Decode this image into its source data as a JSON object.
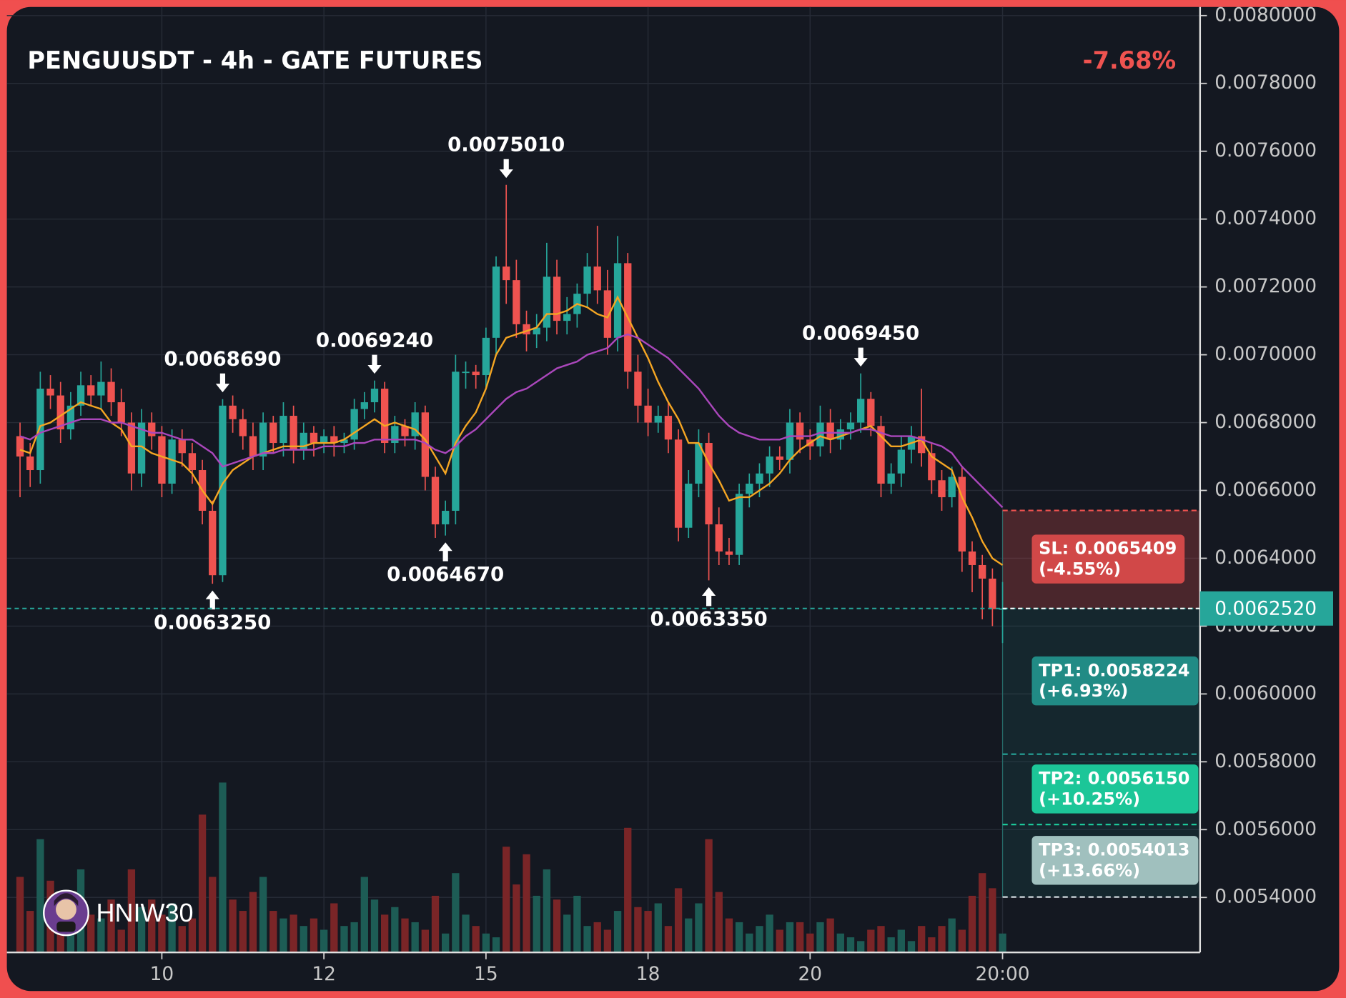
{
  "chart_data": {
    "type": "candlestick",
    "title": "PENGUUSDT - 4h - GATE FUTURES",
    "change": "-7.68%",
    "watermark": "HNIW30",
    "up_color": "#26a69a",
    "down_color": "#ef5350",
    "volume_up_color": "#1d5c55",
    "volume_down_color": "#7a2527",
    "grid": true,
    "xlim": [
      -1.3,
      116.5
    ],
    "xticks": [
      {
        "value": 14,
        "label": "10"
      },
      {
        "value": 30,
        "label": "12"
      },
      {
        "value": 46,
        "label": "15"
      },
      {
        "value": 62,
        "label": "18"
      },
      {
        "value": 78,
        "label": "20"
      },
      {
        "value": 97,
        "label": "20:00"
      }
    ],
    "ylim": [
      0.005238,
      0.008
    ],
    "yticks": [
      {
        "value": 0.0054,
        "label": "0.0054000"
      },
      {
        "value": 0.0056,
        "label": "0.0056000"
      },
      {
        "value": 0.0058,
        "label": "0.0058000"
      },
      {
        "value": 0.006,
        "label": "0.0060000"
      },
      {
        "value": 0.0062,
        "label": "0.0062000"
      },
      {
        "value": 0.0064,
        "label": "0.0064000"
      },
      {
        "value": 0.0066,
        "label": "0.0066000"
      },
      {
        "value": 0.0068,
        "label": "0.0068000"
      },
      {
        "value": 0.007,
        "label": "0.0070000"
      },
      {
        "value": 0.0072,
        "label": "0.0072000"
      },
      {
        "value": 0.0074,
        "label": "0.0074000"
      },
      {
        "value": 0.0076,
        "label": "0.0076000"
      },
      {
        "value": 0.0078,
        "label": "0.0078000"
      },
      {
        "value": 0.008,
        "label": "0.0080000"
      }
    ],
    "open": [
      0.00676,
      0.0067,
      0.00666,
      0.0069,
      0.00688,
      0.00678,
      0.00685,
      0.00691,
      0.00688,
      0.00692,
      0.00686,
      0.0068,
      0.00665,
      0.0068,
      0.00676,
      0.00662,
      0.00675,
      0.00671,
      0.00666,
      0.00654,
      0.00635,
      0.00685,
      0.00681,
      0.00676,
      0.0067,
      0.0068,
      0.00674,
      0.00682,
      0.00672,
      0.00677,
      0.00674,
      0.00676,
      0.00674,
      0.00675,
      0.00684,
      0.00686,
      0.0069,
      0.00674,
      0.00679,
      0.00676,
      0.00683,
      0.00664,
      0.0065,
      0.00654,
      0.00695,
      0.00695,
      0.00694,
      0.00705,
      0.00726,
      0.00722,
      0.00709,
      0.00706,
      0.00708,
      0.00723,
      0.0071,
      0.00712,
      0.00718,
      0.00726,
      0.00719,
      0.00705,
      0.00727,
      0.00695,
      0.00685,
      0.0068,
      0.00682,
      0.00675,
      0.00649,
      0.00662,
      0.00674,
      0.0065,
      0.00642,
      0.00641,
      0.00659,
      0.00662,
      0.00665,
      0.0067,
      0.00669,
      0.0068,
      0.00675,
      0.00673,
      0.0068,
      0.00675,
      0.00678,
      0.0068,
      0.00687,
      0.00679,
      0.00662,
      0.00665,
      0.00672,
      0.00676,
      0.00671,
      0.00663,
      0.00658,
      0.00664,
      0.00642,
      0.00638,
      0.00634,
      0.00625
    ],
    "high": [
      0.0068,
      0.00674,
      0.00695,
      0.00694,
      0.00692,
      0.00689,
      0.00695,
      0.00694,
      0.00698,
      0.00696,
      0.0069,
      0.00683,
      0.00684,
      0.00683,
      0.00679,
      0.00678,
      0.00678,
      0.00674,
      0.00669,
      0.00657,
      0.006869,
      0.00688,
      0.00684,
      0.0068,
      0.00683,
      0.00682,
      0.00686,
      0.00685,
      0.0068,
      0.00679,
      0.00678,
      0.00679,
      0.00677,
      0.00687,
      0.00689,
      0.006924,
      0.00692,
      0.00682,
      0.00681,
      0.00686,
      0.00685,
      0.00667,
      0.00657,
      0.007,
      0.00698,
      0.00697,
      0.00708,
      0.00729,
      0.007501,
      0.00728,
      0.00713,
      0.00712,
      0.00733,
      0.00728,
      0.00717,
      0.00721,
      0.0073,
      0.00738,
      0.00725,
      0.00735,
      0.0073,
      0.007,
      0.0069,
      0.00685,
      0.00686,
      0.00678,
      0.00666,
      0.00678,
      0.00677,
      0.00655,
      0.00646,
      0.00662,
      0.00665,
      0.00668,
      0.00673,
      0.00673,
      0.00684,
      0.00683,
      0.00678,
      0.00685,
      0.00684,
      0.00681,
      0.00683,
      0.006945,
      0.00689,
      0.00682,
      0.00668,
      0.00676,
      0.00679,
      0.0069,
      0.00674,
      0.00666,
      0.00667,
      0.00667,
      0.00645,
      0.00641,
      0.00637,
      0.00633
    ],
    "low": [
      0.00658,
      0.00661,
      0.00662,
      0.00684,
      0.00674,
      0.00675,
      0.00682,
      0.00685,
      0.00684,
      0.00682,
      0.00676,
      0.0066,
      0.00661,
      0.00672,
      0.00658,
      0.00659,
      0.00667,
      0.00662,
      0.0065,
      0.006325,
      0.00633,
      0.00677,
      0.00672,
      0.00666,
      0.00666,
      0.00671,
      0.0067,
      0.00668,
      0.00669,
      0.0067,
      0.00671,
      0.0067,
      0.00671,
      0.00672,
      0.00681,
      0.00683,
      0.00671,
      0.00671,
      0.00673,
      0.00672,
      0.0066,
      0.00646,
      0.006467,
      0.0065,
      0.0069,
      0.0069,
      0.0069,
      0.007,
      0.00715,
      0.00705,
      0.00701,
      0.00702,
      0.00704,
      0.00706,
      0.00706,
      0.00708,
      0.00714,
      0.00715,
      0.007,
      0.00701,
      0.0069,
      0.0068,
      0.00676,
      0.00677,
      0.00671,
      0.00645,
      0.00646,
      0.00658,
      0.006335,
      0.00638,
      0.00638,
      0.00638,
      0.00655,
      0.00658,
      0.00661,
      0.00666,
      0.00665,
      0.00671,
      0.00669,
      0.0067,
      0.00671,
      0.00672,
      0.00675,
      0.00677,
      0.00676,
      0.00658,
      0.00659,
      0.00661,
      0.00668,
      0.00667,
      0.00659,
      0.00654,
      0.00655,
      0.00636,
      0.0063,
      0.00622,
      0.0062,
      0.00615
    ],
    "close": [
      0.0067,
      0.00666,
      0.0069,
      0.00688,
      0.00678,
      0.00685,
      0.00691,
      0.00688,
      0.00692,
      0.00686,
      0.0068,
      0.00665,
      0.0068,
      0.00676,
      0.00662,
      0.00675,
      0.00671,
      0.00666,
      0.00654,
      0.00635,
      0.00685,
      0.00681,
      0.00676,
      0.0067,
      0.0068,
      0.00674,
      0.00682,
      0.00672,
      0.00677,
      0.00674,
      0.00676,
      0.00674,
      0.00675,
      0.00684,
      0.00686,
      0.0069,
      0.00674,
      0.00679,
      0.00676,
      0.00683,
      0.00664,
      0.0065,
      0.00654,
      0.00695,
      0.00695,
      0.00694,
      0.00705,
      0.00726,
      0.00722,
      0.00709,
      0.00706,
      0.00708,
      0.00723,
      0.0071,
      0.00712,
      0.00718,
      0.00726,
      0.00719,
      0.00705,
      0.00727,
      0.00695,
      0.00685,
      0.0068,
      0.00682,
      0.00675,
      0.00649,
      0.00662,
      0.00674,
      0.0065,
      0.00642,
      0.00641,
      0.00659,
      0.00662,
      0.00665,
      0.0067,
      0.00669,
      0.0068,
      0.00675,
      0.00673,
      0.0068,
      0.00675,
      0.00678,
      0.0068,
      0.00687,
      0.00679,
      0.00662,
      0.00665,
      0.00672,
      0.00676,
      0.00671,
      0.00663,
      0.00658,
      0.00664,
      0.00642,
      0.00638,
      0.00634,
      0.00625,
      0.006252
    ],
    "volume": [
      40,
      22,
      60,
      38,
      24,
      30,
      44,
      20,
      18,
      28,
      12,
      44,
      24,
      28,
      20,
      26,
      14,
      18,
      73,
      40,
      90,
      28,
      22,
      32,
      40,
      22,
      18,
      20,
      14,
      18,
      12,
      26,
      14,
      16,
      40,
      28,
      20,
      24,
      18,
      16,
      12,
      30,
      10,
      42,
      20,
      14,
      10,
      8,
      56,
      36,
      52,
      30,
      44,
      28,
      20,
      30,
      14,
      16,
      12,
      22,
      66,
      24,
      22,
      26,
      14,
      34,
      18,
      26,
      60,
      32,
      18,
      16,
      10,
      14,
      20,
      12,
      16,
      16,
      10,
      16,
      18,
      10,
      8,
      6,
      12,
      14,
      8,
      12,
      6,
      14,
      8,
      14,
      18,
      12,
      30,
      42,
      34,
      10
    ],
    "vlim": [
      0,
      100
    ],
    "lines": [
      {
        "color": "#f5a623",
        "values": [
          0.00672,
          0.00671,
          0.00679,
          0.0068,
          0.00682,
          0.00684,
          0.00686,
          0.00685,
          0.00684,
          0.0068,
          0.00678,
          0.00673,
          0.00673,
          0.00671,
          0.0067,
          0.00669,
          0.00668,
          0.00665,
          0.0066,
          0.00656,
          0.00662,
          0.00666,
          0.00668,
          0.0067,
          0.00671,
          0.00672,
          0.00673,
          0.00673,
          0.00673,
          0.00674,
          0.00674,
          0.00674,
          0.00675,
          0.00677,
          0.00679,
          0.00681,
          0.00679,
          0.0068,
          0.00679,
          0.00678,
          0.00675,
          0.0067,
          0.00665,
          0.00674,
          0.00679,
          0.00683,
          0.0069,
          0.007,
          0.00705,
          0.00706,
          0.00707,
          0.00708,
          0.00712,
          0.00712,
          0.00713,
          0.00715,
          0.00714,
          0.00712,
          0.00711,
          0.00717,
          0.00711,
          0.00705,
          0.00699,
          0.00692,
          0.00686,
          0.00681,
          0.00674,
          0.00674,
          0.00668,
          0.00663,
          0.00657,
          0.00658,
          0.00658,
          0.0066,
          0.00662,
          0.00665,
          0.00669,
          0.00672,
          0.00674,
          0.00676,
          0.00675,
          0.00676,
          0.00677,
          0.00678,
          0.00679,
          0.00676,
          0.00673,
          0.00673,
          0.00674,
          0.00675,
          0.0067,
          0.00668,
          0.00666,
          0.00658,
          0.00652,
          0.00645,
          0.0064,
          0.00638
        ]
      },
      {
        "color": "#ab47bc",
        "values": [
          0.00676,
          0.00675,
          0.00677,
          0.00678,
          0.00679,
          0.0068,
          0.00681,
          0.00681,
          0.00681,
          0.0068,
          0.0068,
          0.00679,
          0.00678,
          0.00677,
          0.00677,
          0.00676,
          0.00675,
          0.00675,
          0.00673,
          0.00671,
          0.00667,
          0.00668,
          0.00669,
          0.0067,
          0.00671,
          0.00671,
          0.00672,
          0.00672,
          0.00672,
          0.00672,
          0.00673,
          0.00673,
          0.00673,
          0.00674,
          0.00674,
          0.00675,
          0.00675,
          0.00675,
          0.00675,
          0.00675,
          0.00674,
          0.00672,
          0.00671,
          0.00673,
          0.00676,
          0.00678,
          0.00681,
          0.00684,
          0.00687,
          0.00689,
          0.0069,
          0.00692,
          0.00694,
          0.00696,
          0.00697,
          0.00698,
          0.007,
          0.00701,
          0.00702,
          0.00705,
          0.00706,
          0.00705,
          0.00703,
          0.00701,
          0.00699,
          0.00696,
          0.00693,
          0.0069,
          0.00686,
          0.00682,
          0.00679,
          0.00677,
          0.00676,
          0.00675,
          0.00675,
          0.00675,
          0.00676,
          0.00676,
          0.00676,
          0.00677,
          0.00677,
          0.00677,
          0.00677,
          0.00678,
          0.00678,
          0.00677,
          0.00676,
          0.00676,
          0.00676,
          0.00675,
          0.00674,
          0.00673,
          0.00671,
          0.00667,
          0.00664,
          0.00661,
          0.00658,
          0.00655
        ]
      }
    ],
    "annotations": [
      {
        "index": 20,
        "value": 0.006869,
        "label": "0.0068690",
        "arrow": "down"
      },
      {
        "index": 19,
        "value": 0.006325,
        "label": "0.0063250",
        "arrow": "up"
      },
      {
        "index": 35,
        "value": 0.006924,
        "label": "0.0069240",
        "arrow": "down"
      },
      {
        "index": 42,
        "value": 0.006467,
        "label": "0.0064670",
        "arrow": "up"
      },
      {
        "index": 48,
        "value": 0.007501,
        "label": "0.0075010",
        "arrow": "down"
      },
      {
        "index": 68,
        "value": 0.006335,
        "label": "0.0063350",
        "arrow": "up"
      },
      {
        "index": 83,
        "value": 0.006945,
        "label": "0.0069450",
        "arrow": "down"
      }
    ],
    "last_price": {
      "value": 0.006252,
      "label": "0.0062520",
      "color": "#26a69a"
    },
    "levels": [
      {
        "value": 0.0065409,
        "label": "SL: 0.0065409",
        "change": "(-4.55%)",
        "color": "#d84a4a",
        "line_color": "#ef5350"
      },
      {
        "value": 0.0058224,
        "label": "TP1: 0.0058224",
        "change": "(+6.93%)",
        "color": "#22908a",
        "line_color": "#26a69a"
      },
      {
        "value": 0.005615,
        "label": "TP2: 0.0056150",
        "change": "(+10.25%)",
        "color": "#1ccf9e",
        "line_color": "#1ccf9e"
      },
      {
        "value": 0.0054013,
        "label": "TP3: 0.0054013",
        "change": "(+13.66%)",
        "color": "#a8c8c6",
        "line_color": "#cfd8dc"
      }
    ]
  }
}
